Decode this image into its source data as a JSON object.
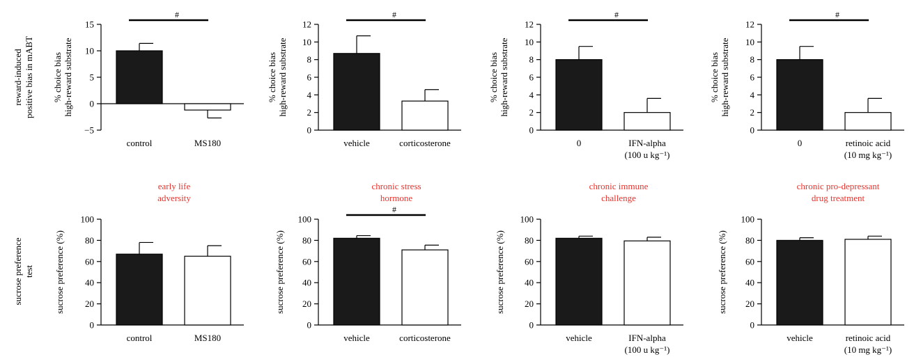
{
  "row_labels": {
    "top": [
      "reward-induced",
      "positive bias in mABT"
    ],
    "bottom": [
      "sucrose preference",
      "test"
    ]
  },
  "column_titles": [
    [
      "early life",
      "adversity"
    ],
    [
      "chronic stress",
      "hormone"
    ],
    [
      "chronic immune",
      "challenge"
    ],
    [
      "chronic pro-depressant",
      "drug treatment"
    ]
  ],
  "colors": {
    "title": "#e8342f",
    "filled_bar": "#1a1a1a",
    "open_bar": "#ffffff",
    "axis": "#000000"
  },
  "chart_data": [
    {
      "type": "bar",
      "panel": "top-1",
      "ylabel": [
        "% choice bias",
        "high-reward substrate"
      ],
      "categories": [
        [
          "control"
        ],
        [
          "MS180"
        ]
      ],
      "values": [
        10,
        -1.2
      ],
      "errors": [
        1.4,
        1.5
      ],
      "ylim": [
        -5,
        15
      ],
      "yticks": [
        -5,
        0,
        5,
        10,
        15
      ],
      "significance": "#"
    },
    {
      "type": "bar",
      "panel": "top-2",
      "ylabel": [
        "% choice bias",
        "high-reward substrate"
      ],
      "categories": [
        [
          "vehicle"
        ],
        [
          "corticosterone"
        ]
      ],
      "values": [
        8.7,
        3.3
      ],
      "errors": [
        2.0,
        1.3
      ],
      "ylim": [
        0,
        12
      ],
      "yticks": [
        0,
        2,
        4,
        6,
        8,
        10,
        12
      ],
      "significance": "#"
    },
    {
      "type": "bar",
      "panel": "top-3",
      "ylabel": [
        "% choice bias",
        "high-reward substrate"
      ],
      "categories": [
        [
          "0"
        ],
        [
          "IFN-alpha",
          "(100 u kg⁻¹)"
        ]
      ],
      "values": [
        8.0,
        2.0
      ],
      "errors": [
        1.5,
        1.6
      ],
      "ylim": [
        0,
        12
      ],
      "yticks": [
        0,
        2,
        4,
        6,
        8,
        10,
        12
      ],
      "significance": "#"
    },
    {
      "type": "bar",
      "panel": "top-4",
      "ylabel": [
        "% choice bias",
        "high-reward substrate"
      ],
      "categories": [
        [
          "0"
        ],
        [
          "retinoic acid",
          "(10 mg kg⁻¹)"
        ]
      ],
      "values": [
        8.0,
        2.0
      ],
      "errors": [
        1.5,
        1.6
      ],
      "ylim": [
        0,
        12
      ],
      "yticks": [
        0,
        2,
        4,
        6,
        8,
        10,
        12
      ],
      "significance": "#"
    },
    {
      "type": "bar",
      "panel": "bottom-1",
      "ylabel": [
        "sucrose preference (%)"
      ],
      "categories": [
        [
          "control"
        ],
        [
          "MS180"
        ]
      ],
      "values": [
        67,
        65
      ],
      "errors": [
        11,
        10
      ],
      "ylim": [
        0,
        100
      ],
      "yticks": [
        0,
        20,
        40,
        60,
        80,
        100
      ],
      "significance": ""
    },
    {
      "type": "bar",
      "panel": "bottom-2",
      "ylabel": [
        "sucrose preference (%)"
      ],
      "categories": [
        [
          "vehicle"
        ],
        [
          "corticosterone"
        ]
      ],
      "values": [
        82,
        71
      ],
      "errors": [
        2.5,
        4.5
      ],
      "ylim": [
        0,
        100
      ],
      "yticks": [
        0,
        20,
        40,
        60,
        80,
        100
      ],
      "significance": "#"
    },
    {
      "type": "bar",
      "panel": "bottom-3",
      "ylabel": [
        "sucrose preference (%)"
      ],
      "categories": [
        [
          "vehicle"
        ],
        [
          "IFN-alpha",
          "(100 u kg⁻¹)"
        ]
      ],
      "values": [
        82,
        79.5
      ],
      "errors": [
        2,
        3.5
      ],
      "ylim": [
        0,
        100
      ],
      "yticks": [
        0,
        20,
        40,
        60,
        80,
        100
      ],
      "significance": ""
    },
    {
      "type": "bar",
      "panel": "bottom-4",
      "ylabel": [
        "sucrose preference (%)"
      ],
      "categories": [
        [
          "vehicle"
        ],
        [
          "retinoic acid",
          "(10 mg kg⁻¹)"
        ]
      ],
      "values": [
        80,
        81
      ],
      "errors": [
        2.5,
        3
      ],
      "ylim": [
        0,
        100
      ],
      "yticks": [
        0,
        20,
        40,
        60,
        80,
        100
      ],
      "significance": ""
    }
  ]
}
